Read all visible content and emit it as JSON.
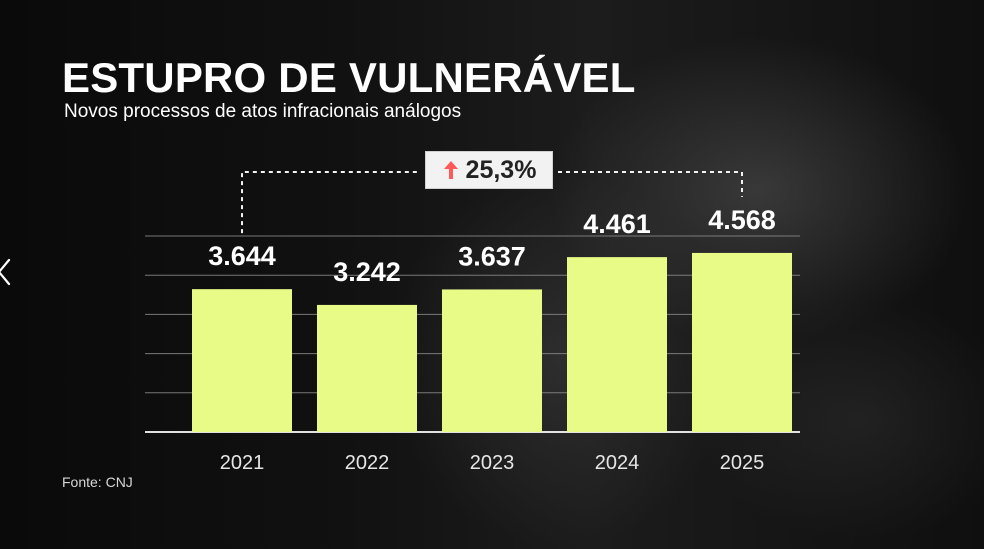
{
  "chart": {
    "title": "ESTUPRO DE VULNERÁVEL",
    "subtitle": "Novos processos de atos infracionais análogos",
    "source": "Fonte: CNJ",
    "growth_label": "25,3%",
    "growth_icon": "up-arrow-icon",
    "colors": {
      "bar": "#e8fb86",
      "text": "#ffffff",
      "grid": "#8a8a8a",
      "badge_bg": "#f2f2f2",
      "badge_text": "#222222",
      "arrow": "#ff5a5a"
    }
  },
  "chart_data": {
    "type": "bar",
    "title": "ESTUPRO DE VULNERÁVEL",
    "subtitle": "Novos processos de atos infracionais análogos",
    "categories": [
      "2021",
      "2022",
      "2023",
      "2024",
      "2025"
    ],
    "values": [
      3644,
      3242,
      3637,
      4461,
      4568
    ],
    "value_labels": [
      "3.644",
      "3.242",
      "3.637",
      "4.461",
      "4.568"
    ],
    "xlabel": "",
    "ylabel": "",
    "ylim": [
      0,
      5000
    ],
    "grid": true,
    "annotation": "25,3%"
  }
}
